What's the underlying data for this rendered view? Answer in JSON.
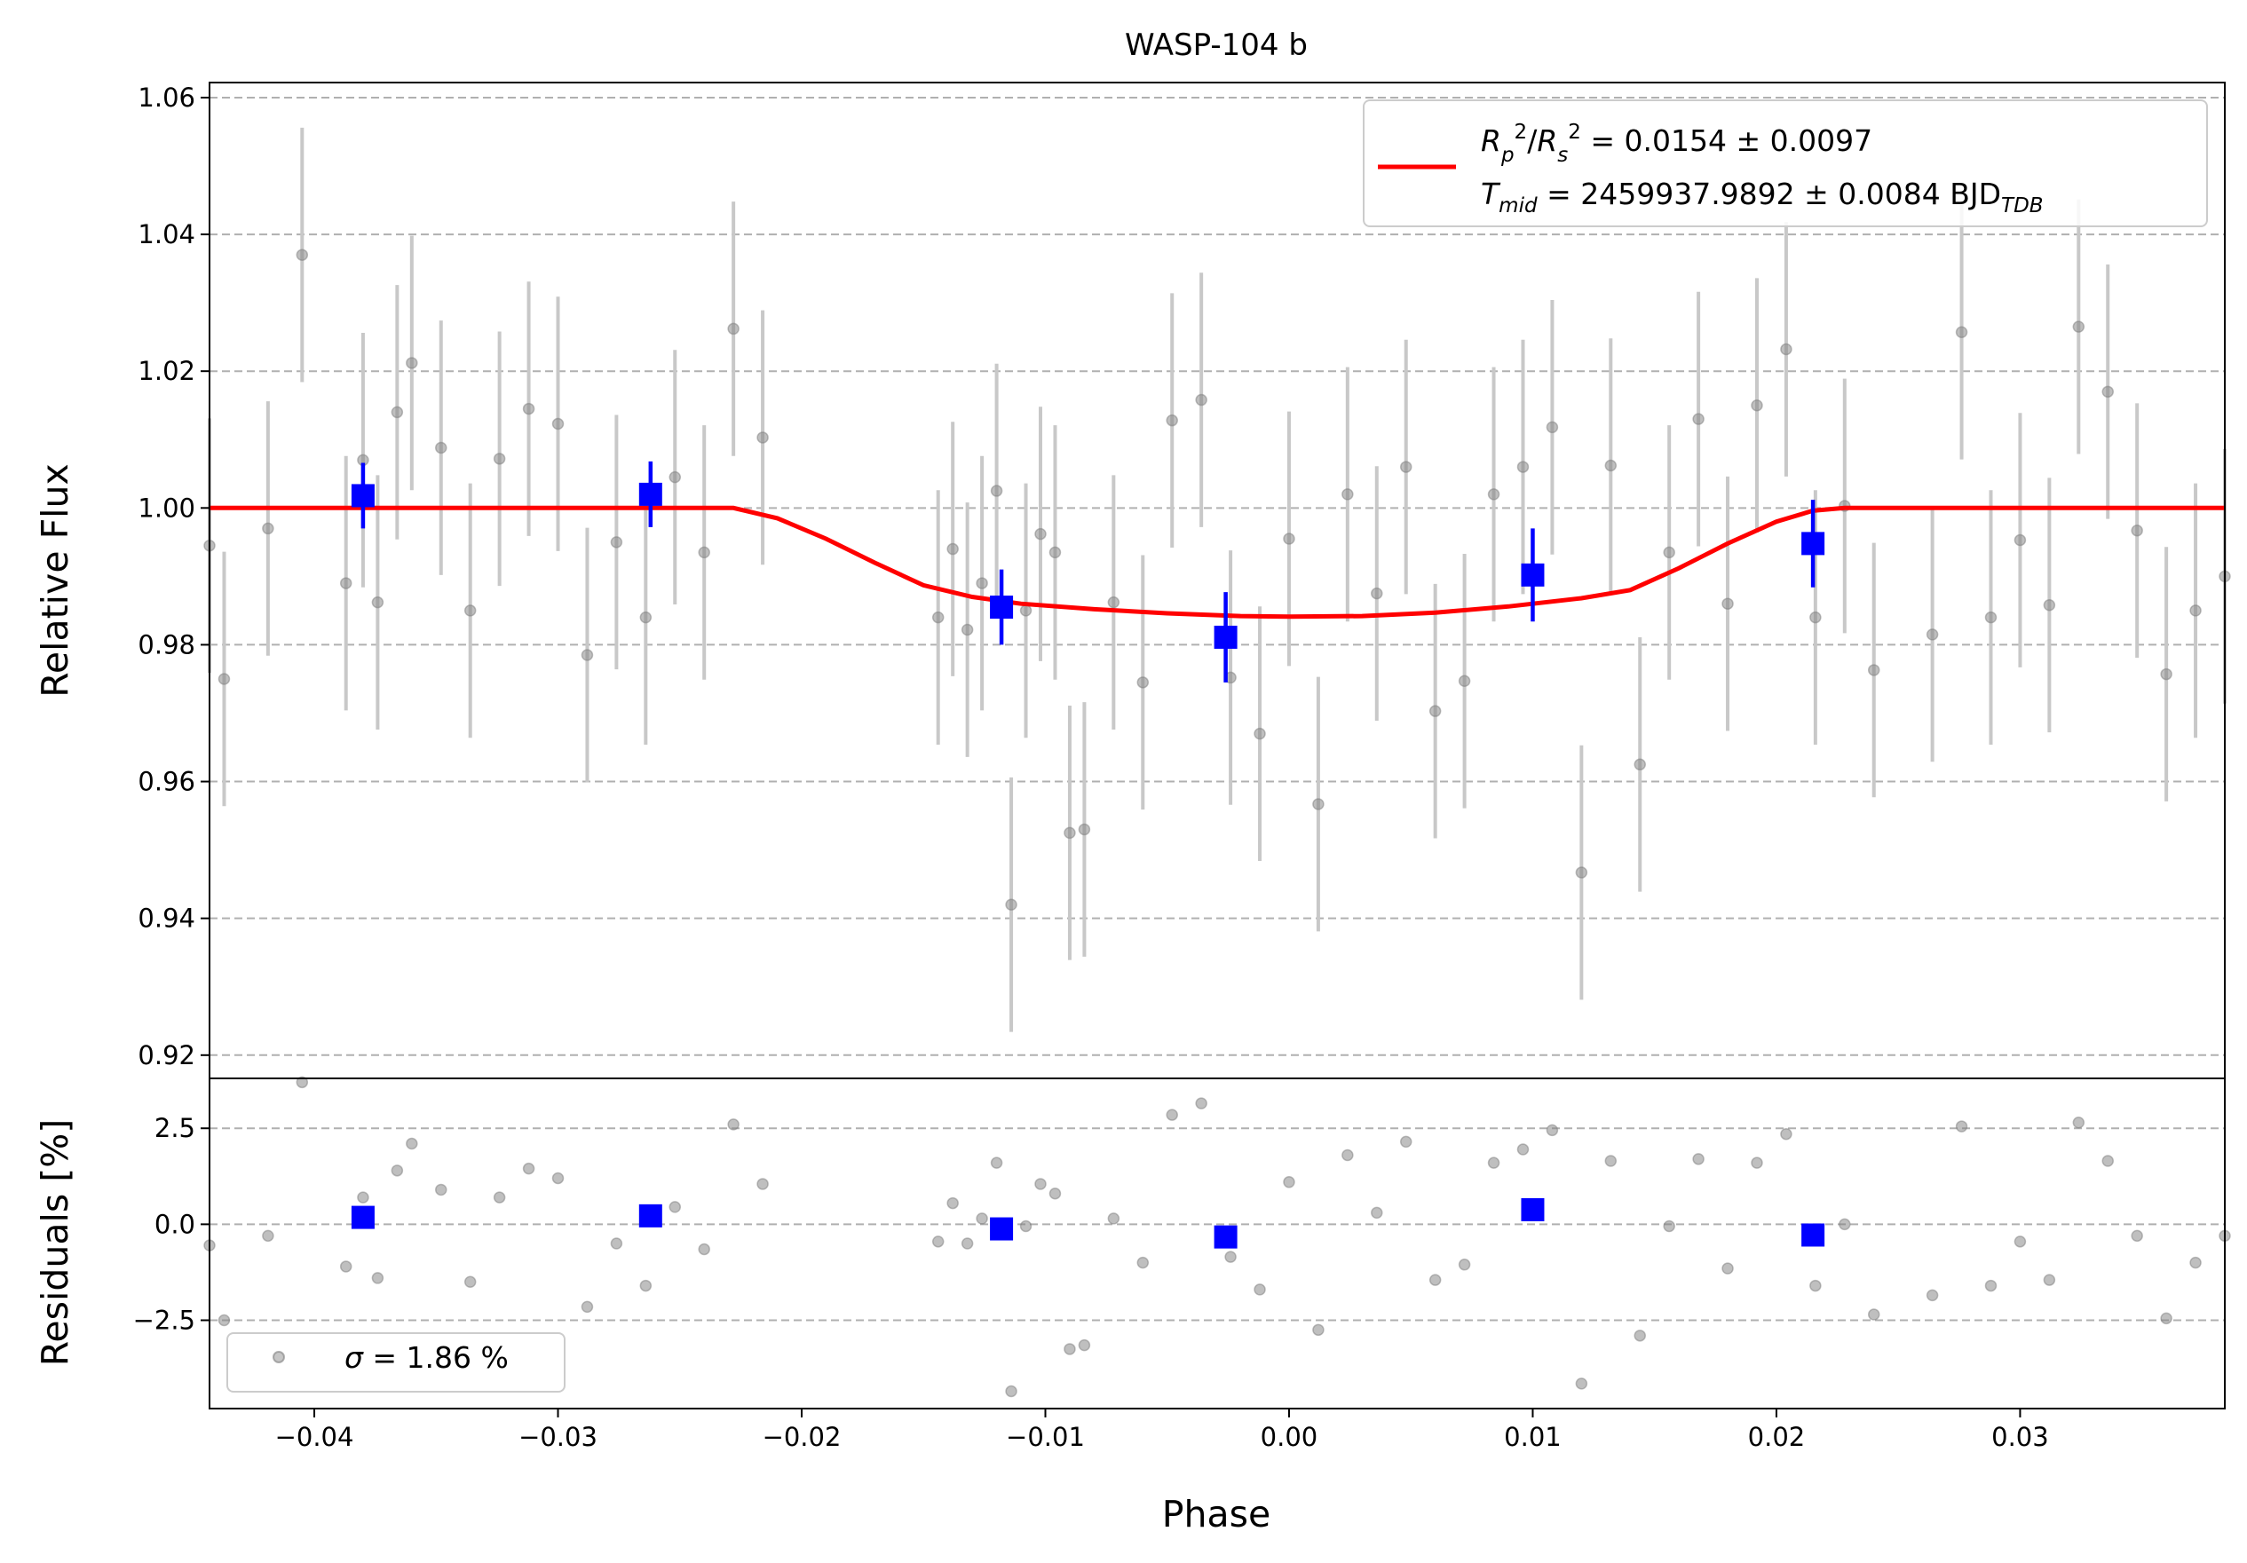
{
  "chart_data": [
    {
      "type": "scatter",
      "panel": "light-curve",
      "title": "WASP-104 b",
      "xlabel": "",
      "ylabel": "Relative Flux",
      "xlim": [
        -0.0443,
        0.0384
      ],
      "ylim": [
        0.9166,
        1.0622
      ],
      "yticks": [
        0.92,
        0.94,
        0.96,
        0.98,
        1.0,
        1.02,
        1.04,
        1.06
      ],
      "ytick_labels": [
        "0.92",
        "0.94",
        "0.96",
        "0.98",
        "1.00",
        "1.02",
        "1.04",
        "1.06"
      ],
      "grid": "horizontal dashed",
      "legend_position": "top-right",
      "legend": {
        "symbol": "R",
        "rp_rs_value": "= 0.0154 ± 0.0097",
        "tmid_value": "= 2459937.9892 ± 0.0084 BJD",
        "tmid_units_sub": "TDB"
      },
      "series": [
        {
          "role": "data",
          "style": "grey points with error bars",
          "x": [
            -0.0443,
            -0.0437,
            -0.0419,
            -0.0405,
            -0.0387,
            -0.038,
            -0.0374,
            -0.0366,
            -0.036,
            -0.0348,
            -0.0336,
            -0.0324,
            -0.0312,
            -0.03,
            -0.0288,
            -0.0276,
            -0.0264,
            -0.0252,
            -0.024,
            -0.0228,
            -0.0216,
            -0.0144,
            -0.0138,
            -0.0132,
            -0.0126,
            -0.012,
            -0.0114,
            -0.0108,
            -0.0102,
            -0.0096,
            -0.009,
            -0.0084,
            -0.0072,
            -0.006,
            -0.0048,
            -0.0036,
            -0.0024,
            -0.0012,
            0.0,
            0.0012,
            0.0024,
            0.0036,
            0.0048,
            0.006,
            0.0072,
            0.0084,
            0.0096,
            0.0108,
            0.012,
            0.0132,
            0.0144,
            0.0156,
            0.0168,
            0.018,
            0.0192,
            0.0204,
            0.0216,
            0.0228,
            0.024,
            0.0264,
            0.0276,
            0.0288,
            0.03,
            0.0312,
            0.0324,
            0.0336,
            0.0348,
            0.036,
            0.0372,
            0.0384
          ],
          "y": [
            0.9945,
            0.975,
            0.997,
            1.037,
            0.989,
            1.007,
            0.9862,
            1.014,
            1.0212,
            1.0088,
            0.985,
            1.0072,
            1.0145,
            1.0123,
            0.9785,
            0.995,
            0.984,
            1.0045,
            0.9935,
            1.0262,
            1.0103,
            0.984,
            0.994,
            0.9822,
            0.989,
            1.0025,
            0.942,
            0.985,
            0.9962,
            0.9935,
            0.9525,
            0.953,
            0.9862,
            0.9745,
            1.0128,
            1.0158,
            0.9752,
            0.967,
            0.9955,
            0.9567,
            1.002,
            0.9875,
            1.006,
            0.9703,
            0.9747,
            1.002,
            1.006,
            1.0118,
            0.9467,
            1.0062,
            0.9625,
            0.9935,
            1.013,
            0.986,
            1.015,
            1.0232,
            0.984,
            1.0003,
            0.9763,
            0.9815,
            1.0257,
            0.984,
            0.9953,
            0.9858,
            1.0265,
            1.017,
            0.9967,
            0.9757,
            0.985,
            0.99
          ],
          "error": 0.0186
        },
        {
          "role": "binned",
          "style": "blue squares with error bars",
          "x": [
            -0.038,
            -0.0262,
            -0.0118,
            -0.0026,
            0.01,
            0.0215
          ],
          "y": [
            1.0018,
            1.002,
            0.9855,
            0.9811,
            0.9902,
            0.9948
          ],
          "error": [
            0.0048,
            0.0048,
            0.0055,
            0.0066,
            0.0068,
            0.0064
          ]
        },
        {
          "role": "model",
          "style": "red line",
          "x": [
            -0.0443,
            -0.0228,
            -0.021,
            -0.019,
            -0.017,
            -0.015,
            -0.013,
            -0.011,
            -0.008,
            -0.005,
            -0.002,
            0.0,
            0.003,
            0.006,
            0.009,
            0.012,
            0.014,
            0.016,
            0.018,
            0.02,
            0.0215,
            0.0228,
            0.0384
          ],
          "y": [
            1.0,
            1.0,
            0.9985,
            0.9955,
            0.992,
            0.9887,
            0.987,
            0.986,
            0.9852,
            0.9846,
            0.9842,
            0.9841,
            0.9842,
            0.9847,
            0.9856,
            0.9868,
            0.988,
            0.9912,
            0.9948,
            0.998,
            0.9996,
            1.0,
            1.0
          ]
        }
      ]
    },
    {
      "type": "scatter",
      "panel": "residuals",
      "xlabel": "Phase",
      "ylabel": "Residuals [%]",
      "xlim": [
        -0.0443,
        0.0384
      ],
      "ylim": [
        -4.8,
        3.8
      ],
      "xticks": [
        -0.04,
        -0.03,
        -0.02,
        -0.01,
        0.0,
        0.01,
        0.02,
        0.03
      ],
      "xtick_labels": [
        "−0.04",
        "−0.03",
        "−0.02",
        "−0.01",
        "0.00",
        "0.01",
        "0.02",
        "0.03"
      ],
      "yticks": [
        -2.5,
        0.0,
        2.5
      ],
      "ytick_labels": [
        "−2.5",
        "0.0",
        "2.5"
      ],
      "grid": "horizontal dashed",
      "legend_position": "bottom-left",
      "legend": {
        "symbol": "σ",
        "value": "= 1.86 %"
      },
      "series": [
        {
          "role": "residuals",
          "style": "grey points",
          "x": [
            -0.0443,
            -0.0437,
            -0.0419,
            -0.0405,
            -0.0387,
            -0.038,
            -0.0374,
            -0.0366,
            -0.036,
            -0.0348,
            -0.0336,
            -0.0324,
            -0.0312,
            -0.03,
            -0.0288,
            -0.0276,
            -0.0264,
            -0.0252,
            -0.024,
            -0.0228,
            -0.0216,
            -0.0144,
            -0.0138,
            -0.0132,
            -0.0126,
            -0.012,
            -0.0114,
            -0.0108,
            -0.0102,
            -0.0096,
            -0.009,
            -0.0084,
            -0.0072,
            -0.006,
            -0.0048,
            -0.0036,
            -0.0024,
            -0.0012,
            0.0,
            0.0012,
            0.0024,
            0.0036,
            0.0048,
            0.006,
            0.0072,
            0.0084,
            0.0096,
            0.0108,
            0.012,
            0.0132,
            0.0144,
            0.0156,
            0.0168,
            0.018,
            0.0192,
            0.0204,
            0.0216,
            0.0228,
            0.024,
            0.0264,
            0.0276,
            0.0288,
            0.03,
            0.0312,
            0.0324,
            0.0336,
            0.0348,
            0.036,
            0.0372,
            0.0384
          ],
          "y": [
            -0.55,
            -2.5,
            -0.3,
            3.7,
            -1.1,
            0.7,
            -1.4,
            1.4,
            2.1,
            0.9,
            -1.5,
            0.7,
            1.45,
            1.2,
            -2.15,
            -0.5,
            -1.6,
            0.45,
            -0.65,
            2.6,
            1.05,
            -0.45,
            0.55,
            -0.5,
            0.15,
            1.6,
            -4.35,
            -0.05,
            1.05,
            0.8,
            -3.25,
            -3.15,
            0.15,
            -1.0,
            2.85,
            3.15,
            -0.85,
            -1.7,
            1.1,
            -2.75,
            1.8,
            0.3,
            2.15,
            -1.45,
            -1.05,
            1.6,
            1.95,
            2.45,
            -4.15,
            1.65,
            -2.9,
            -0.05,
            1.7,
            -1.15,
            1.6,
            2.35,
            -1.6,
            0.0,
            -2.35,
            -1.85,
            2.55,
            -1.6,
            -0.45,
            -1.45,
            2.65,
            1.65,
            -0.3,
            -2.45,
            -1.0,
            -0.3
          ]
        },
        {
          "role": "binned residuals",
          "style": "blue squares",
          "x": [
            -0.038,
            -0.0262,
            -0.0118,
            -0.0026,
            0.01,
            0.0215
          ],
          "y": [
            0.18,
            0.22,
            -0.12,
            -0.33,
            0.38,
            -0.28
          ]
        }
      ]
    }
  ]
}
